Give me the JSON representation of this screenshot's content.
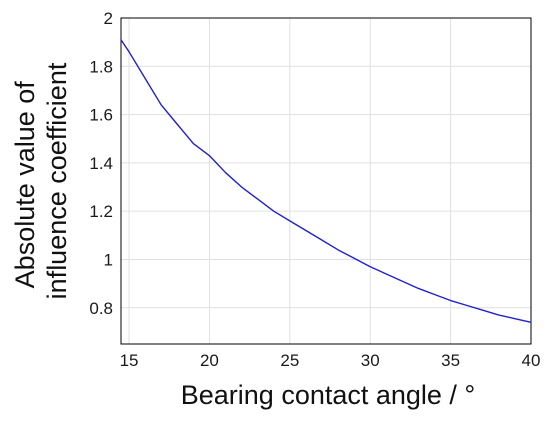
{
  "chart_data": {
    "type": "line",
    "xlabel": "Bearing contact angle / °",
    "ylabel_lines": [
      "Absolute value of",
      "influence coefficient"
    ],
    "xlim": [
      14.5,
      40
    ],
    "ylim": [
      0.65,
      2
    ],
    "x_ticks": [
      15,
      20,
      25,
      30,
      35,
      40
    ],
    "y_ticks": [
      0.8,
      1,
      1.2,
      1.4,
      1.6,
      1.8,
      2
    ],
    "x_tick_labels": [
      "15",
      "20",
      "25",
      "30",
      "35",
      "40"
    ],
    "y_tick_labels": [
      "0.8",
      "1",
      "1.2",
      "1.4",
      "1.6",
      "1.8",
      "2"
    ],
    "grid": true,
    "colors": {
      "line": "#2020d0",
      "grid": "#e0e0e0",
      "axis": "#000000"
    },
    "series": [
      {
        "x": [
          14.5,
          15,
          16,
          17,
          18,
          19,
          20,
          21,
          22,
          23,
          24,
          25,
          26,
          27,
          28,
          29,
          30,
          31,
          32,
          33,
          34,
          35,
          36,
          37,
          38,
          39,
          40
        ],
        "values": [
          1.91,
          1.86,
          1.75,
          1.64,
          1.56,
          1.48,
          1.43,
          1.36,
          1.3,
          1.25,
          1.2,
          1.16,
          1.12,
          1.08,
          1.04,
          1.005,
          0.97,
          0.94,
          0.91,
          0.88,
          0.855,
          0.83,
          0.81,
          0.79,
          0.77,
          0.755,
          0.74
        ]
      }
    ]
  }
}
